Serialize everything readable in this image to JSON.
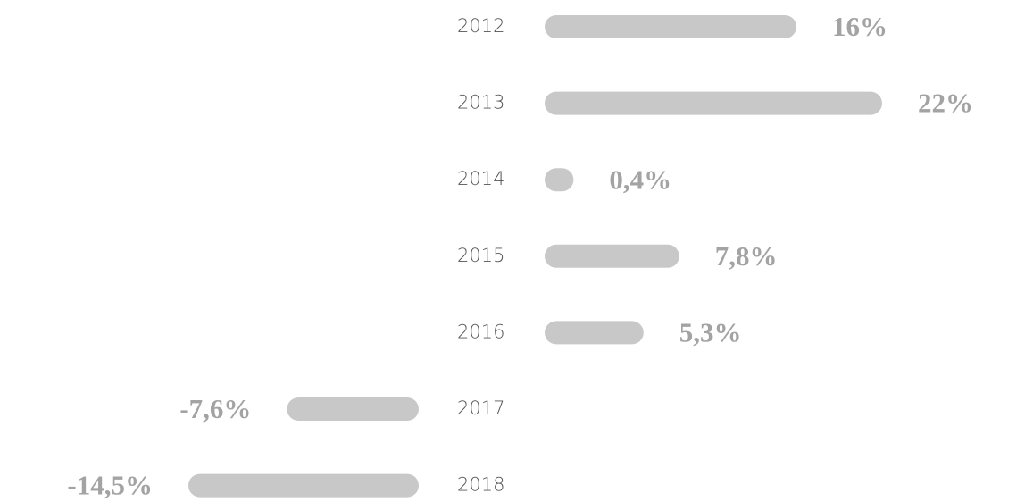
{
  "chart_data": {
    "type": "bar",
    "categories": [
      "2012",
      "2013",
      "2014",
      "2015",
      "2016",
      "2017",
      "2018"
    ],
    "values": [
      16,
      22,
      0.4,
      7.8,
      5.3,
      -7.6,
      -14.5
    ],
    "value_labels": [
      "16%",
      "22%",
      "0,4%",
      "7,8%",
      "5,3%",
      "-7,6%",
      "-14,5%"
    ],
    "color": "#c8c8c8"
  }
}
